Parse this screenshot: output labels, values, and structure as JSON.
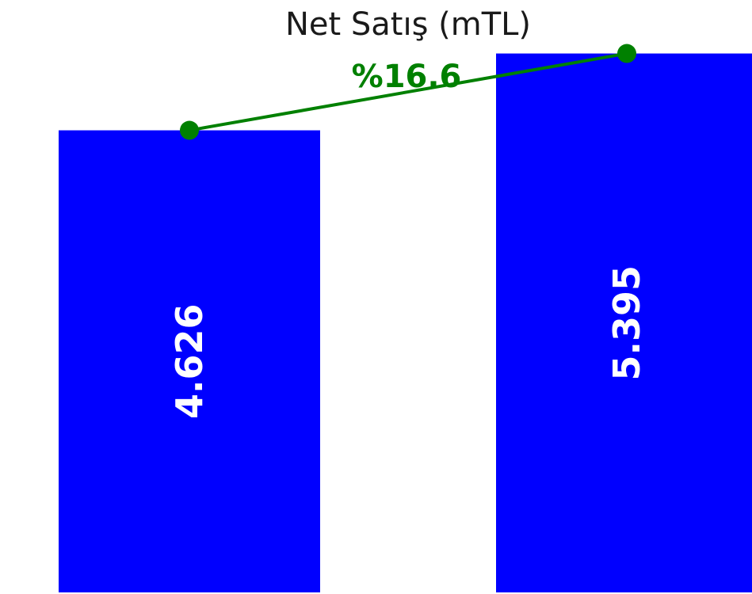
{
  "chart_data": {
    "type": "bar",
    "title": "Net Satış (mTL)",
    "categories": [
      "",
      ""
    ],
    "values": [
      4626,
      5395
    ],
    "value_labels": [
      "4.626",
      "5.395"
    ],
    "ylim": [
      0,
      5550
    ],
    "grid": false,
    "legend": "none",
    "bar_color": "#0000ff",
    "label_color": "#ffffff",
    "trend": {
      "color": "#008000",
      "label": "%16.6"
    }
  }
}
